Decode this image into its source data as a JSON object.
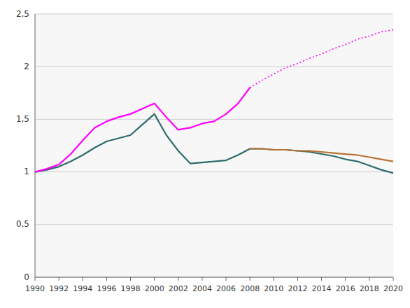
{
  "chart_data": {
    "type": "line",
    "x": [
      1990,
      1991,
      1992,
      1993,
      1994,
      1995,
      1996,
      1997,
      1998,
      1999,
      2000,
      2001,
      2002,
      2003,
      2004,
      2005,
      2006,
      2007,
      2008,
      2009,
      2010,
      2011,
      2012,
      2013,
      2014,
      2015,
      2016,
      2017,
      2018,
      2019,
      2020
    ],
    "series": [
      {
        "color": "#2E6B6B",
        "line_style": "solid",
        "values": [
          1.0,
          1.02,
          1.05,
          1.1,
          1.16,
          1.23,
          1.29,
          1.32,
          1.35,
          1.45,
          1.55,
          1.35,
          1.2,
          1.08,
          1.09,
          1.1,
          1.11,
          1.16,
          1.22,
          1.22,
          1.21,
          1.21,
          1.2,
          1.19,
          1.17,
          1.15,
          1.12,
          1.1,
          1.06,
          1.02,
          0.99
        ]
      },
      {
        "color": "#B87333",
        "line_style": "solid",
        "values": [
          null,
          null,
          null,
          null,
          null,
          null,
          null,
          null,
          null,
          null,
          null,
          null,
          null,
          null,
          null,
          null,
          null,
          null,
          1.22,
          1.22,
          1.21,
          1.21,
          1.2,
          1.2,
          1.19,
          1.18,
          1.17,
          1.16,
          1.14,
          1.12,
          1.1
        ]
      },
      {
        "color": "#FF00FF",
        "line_style": "solid",
        "values": [
          1.0,
          1.03,
          1.07,
          1.17,
          1.3,
          1.42,
          1.48,
          1.52,
          1.55,
          1.6,
          1.65,
          1.52,
          1.4,
          1.42,
          1.46,
          1.48,
          1.55,
          1.65,
          1.8,
          null,
          null,
          null,
          null,
          null,
          null,
          null,
          null,
          null,
          null,
          null,
          null
        ]
      },
      {
        "color": "#FF00FF",
        "line_style": "dotted",
        "values": [
          null,
          null,
          null,
          null,
          null,
          null,
          null,
          null,
          null,
          null,
          null,
          null,
          null,
          null,
          null,
          null,
          null,
          null,
          1.8,
          1.87,
          1.93,
          1.99,
          2.03,
          2.08,
          2.12,
          2.17,
          2.21,
          2.26,
          2.29,
          2.33,
          2.35
        ]
      }
    ],
    "xlim": [
      1990,
      2020
    ],
    "xticks": [
      1990,
      1992,
      1994,
      1996,
      1998,
      2000,
      2002,
      2004,
      2006,
      2008,
      2010,
      2012,
      2014,
      2016,
      2018,
      2020
    ],
    "ylim": [
      0,
      2.5
    ],
    "yticks": [
      0,
      {
        "value": 0.5,
        "label": "0,5"
      },
      1,
      {
        "value": 1.5,
        "label": "1,5"
      },
      2,
      {
        "value": 2.5,
        "label": "2,5"
      }
    ],
    "grid": "y"
  }
}
